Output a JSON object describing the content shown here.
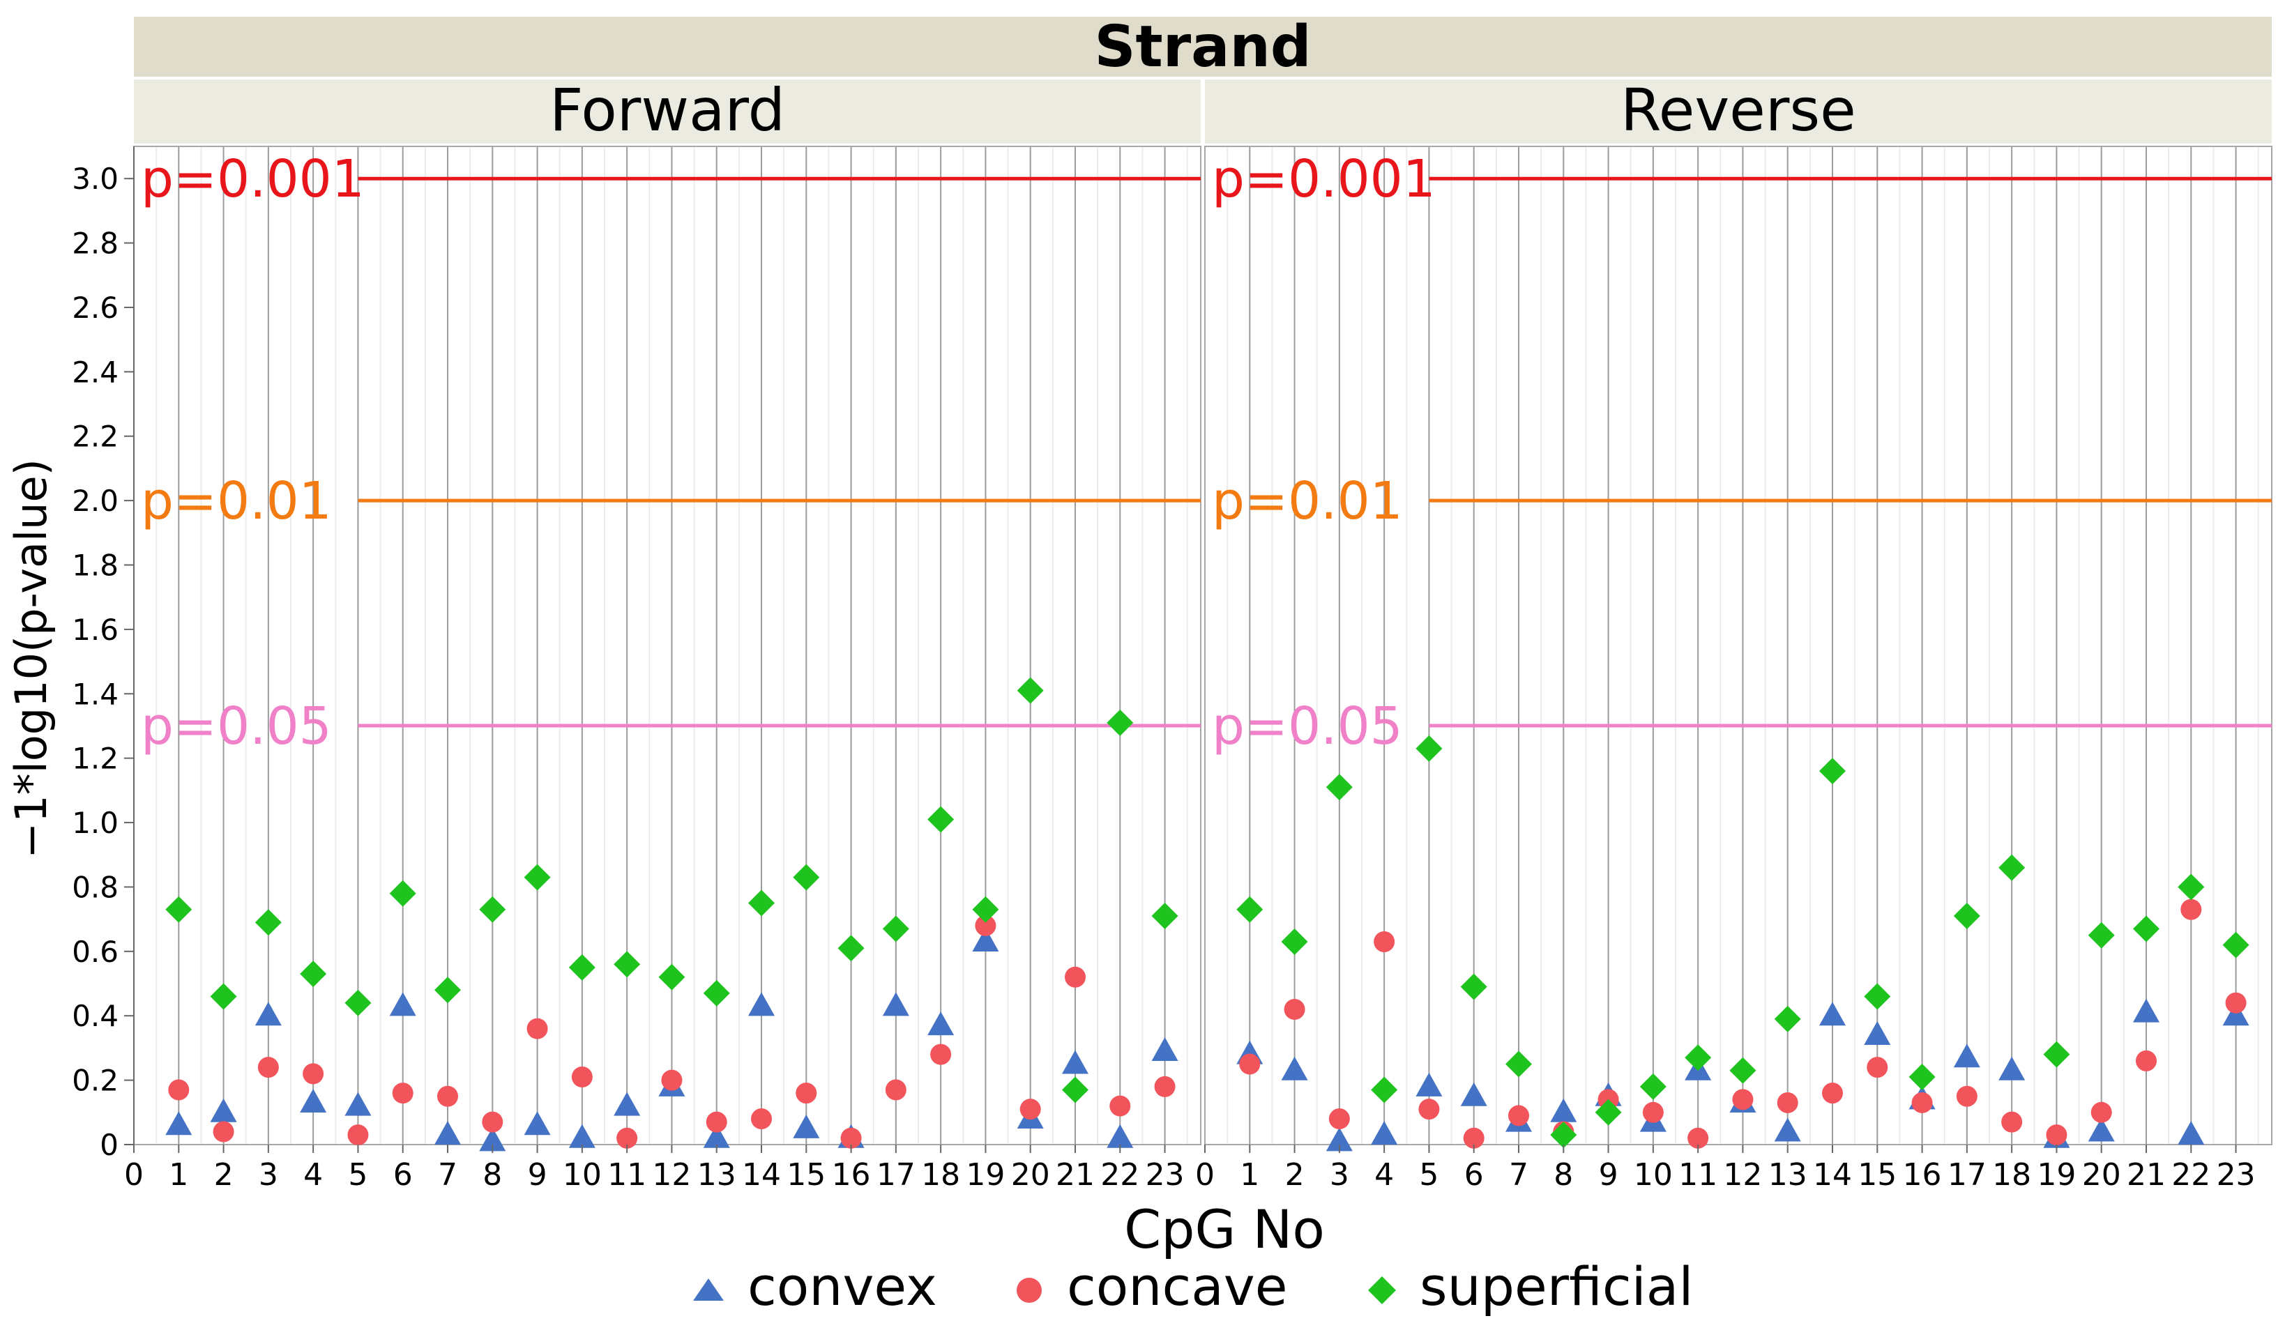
{
  "chart_data": {
    "type": "scatter",
    "facet_group_title": "Strand",
    "panels": [
      "Forward",
      "Reverse"
    ],
    "xlabel": "CpG No",
    "ylabel": "−1*log10(p-value)",
    "xlim": [
      0,
      23.8
    ],
    "ylim": [
      0,
      3.1
    ],
    "x_ticks": [
      "0",
      "1",
      "2",
      "3",
      "4",
      "5",
      "6",
      "7",
      "8",
      "9",
      "10",
      "11",
      "12",
      "13",
      "14",
      "15",
      "16",
      "17",
      "18",
      "19",
      "20",
      "21",
      "22",
      "23"
    ],
    "y_ticks": [
      "0",
      "0.2",
      "0.4",
      "0.6",
      "0.8",
      "1.0",
      "1.2",
      "1.4",
      "1.6",
      "1.8",
      "2.0",
      "2.2",
      "2.4",
      "2.6",
      "2.8",
      "3.0"
    ],
    "reference_lines": [
      {
        "label": "p=0.001",
        "value": 3.0,
        "color": "#e8151b"
      },
      {
        "label": "p=0.01",
        "value": 2.0,
        "color": "#f47b12"
      },
      {
        "label": "p=0.05",
        "value": 1.301,
        "color": "#f080c8"
      }
    ],
    "series": [
      {
        "name": "convex",
        "marker": "triangle",
        "color": "#4472c4",
        "values": {
          "Forward": [
            0.06,
            0.1,
            0.4,
            0.13,
            0.12,
            0.43,
            0.03,
            0.01,
            0.06,
            0.02,
            0.12,
            0.18,
            0.02,
            0.43,
            0.05,
            0.02,
            0.43,
            0.37,
            0.63,
            0.08,
            0.25,
            0.02,
            0.29
          ],
          "Reverse": [
            0.28,
            0.23,
            0.01,
            0.03,
            0.18,
            0.15,
            0.07,
            0.1,
            0.15,
            0.07,
            0.23,
            0.13,
            0.04,
            0.4,
            0.34,
            0.14,
            0.27,
            0.23,
            0.02,
            0.04,
            0.41,
            0.03,
            0.4
          ]
        }
      },
      {
        "name": "concave",
        "marker": "circle",
        "color": "#f2545b",
        "values": {
          "Forward": [
            0.17,
            0.04,
            0.24,
            0.22,
            0.03,
            0.16,
            0.15,
            0.07,
            0.36,
            0.21,
            0.02,
            0.2,
            0.07,
            0.08,
            0.16,
            0.02,
            0.17,
            0.28,
            0.68,
            0.11,
            0.52,
            0.12,
            0.18
          ],
          "Reverse": [
            0.25,
            0.42,
            0.08,
            0.63,
            0.11,
            0.02,
            0.09,
            0.04,
            0.14,
            0.1,
            0.02,
            0.14,
            0.13,
            0.16,
            0.24,
            0.13,
            0.15,
            0.07,
            0.03,
            0.1,
            0.26,
            0.73,
            0.44
          ]
        }
      },
      {
        "name": "superficial",
        "marker": "diamond",
        "color": "#1ec31e",
        "values": {
          "Forward": [
            0.73,
            0.46,
            0.69,
            0.53,
            0.44,
            0.78,
            0.48,
            0.73,
            0.83,
            0.55,
            0.56,
            0.52,
            0.47,
            0.75,
            0.83,
            0.61,
            0.67,
            1.01,
            0.73,
            1.41,
            0.17,
            1.31,
            0.71
          ],
          "Reverse": [
            0.73,
            0.63,
            1.11,
            0.17,
            1.23,
            0.49,
            0.25,
            0.03,
            0.1,
            0.18,
            0.27,
            0.23,
            0.39,
            1.16,
            0.46,
            0.21,
            0.71,
            0.86,
            0.28,
            0.65,
            0.67,
            0.8,
            0.62
          ]
        }
      }
    ],
    "legend": {
      "position": "bottom",
      "entries": [
        "convex",
        "concave",
        "superficial"
      ]
    }
  }
}
